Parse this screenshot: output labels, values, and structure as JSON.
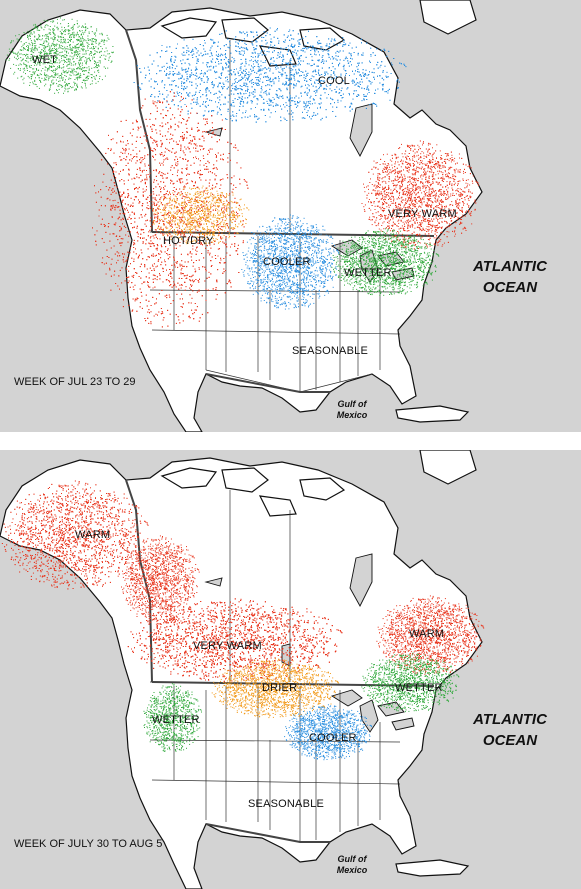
{
  "colors": {
    "background": "#d3d3d3",
    "land": "#ffffff",
    "border": "#111111",
    "warm": "#e8341c",
    "cool": "#2b8fe0",
    "wet": "#2fa83a",
    "hot_dry": "#f29a1a"
  },
  "panels": [
    {
      "week_label": "WEEK OF JUL 23 TO 29",
      "ocean_line1": "ATLANTIC",
      "ocean_line2": "OCEAN",
      "gulf_line1": "Gulf of",
      "gulf_line2": "Mexico",
      "labels": [
        "WET",
        "COOL",
        "HOT/DRY",
        "VERY WARM",
        "COOLER",
        "WETTER",
        "SEASONABLE"
      ],
      "anomalies": [
        {
          "category": "wet",
          "label": "WET"
        },
        {
          "category": "cool",
          "label": "COOL"
        },
        {
          "category": "warm",
          "label": "HOT/DRY"
        },
        {
          "category": "hot_dry",
          "label": "HOT/DRY"
        },
        {
          "category": "warm",
          "label": "VERY WARM"
        },
        {
          "category": "cool",
          "label": "COOLER"
        },
        {
          "category": "wet",
          "label": "WETTER"
        }
      ]
    },
    {
      "week_label": "WEEK OF JULY 30 TO AUG 5",
      "ocean_line1": "ATLANTIC",
      "ocean_line2": "OCEAN",
      "gulf_line1": "Gulf of",
      "gulf_line2": "Mexico",
      "labels": [
        "WARM",
        "VERY WARM",
        "DRIER",
        "WARM",
        "WETTER",
        "WETTER",
        "COOLER",
        "SEASONABLE"
      ],
      "anomalies": [
        {
          "category": "warm",
          "label": "WARM"
        },
        {
          "category": "warm",
          "label": "VERY WARM"
        },
        {
          "category": "hot_dry",
          "label": "DRIER"
        },
        {
          "category": "warm",
          "label": "WARM"
        },
        {
          "category": "wet",
          "label": "WETTER"
        },
        {
          "category": "wet",
          "label": "WETTER"
        },
        {
          "category": "cool",
          "label": "COOLER"
        }
      ]
    }
  ]
}
